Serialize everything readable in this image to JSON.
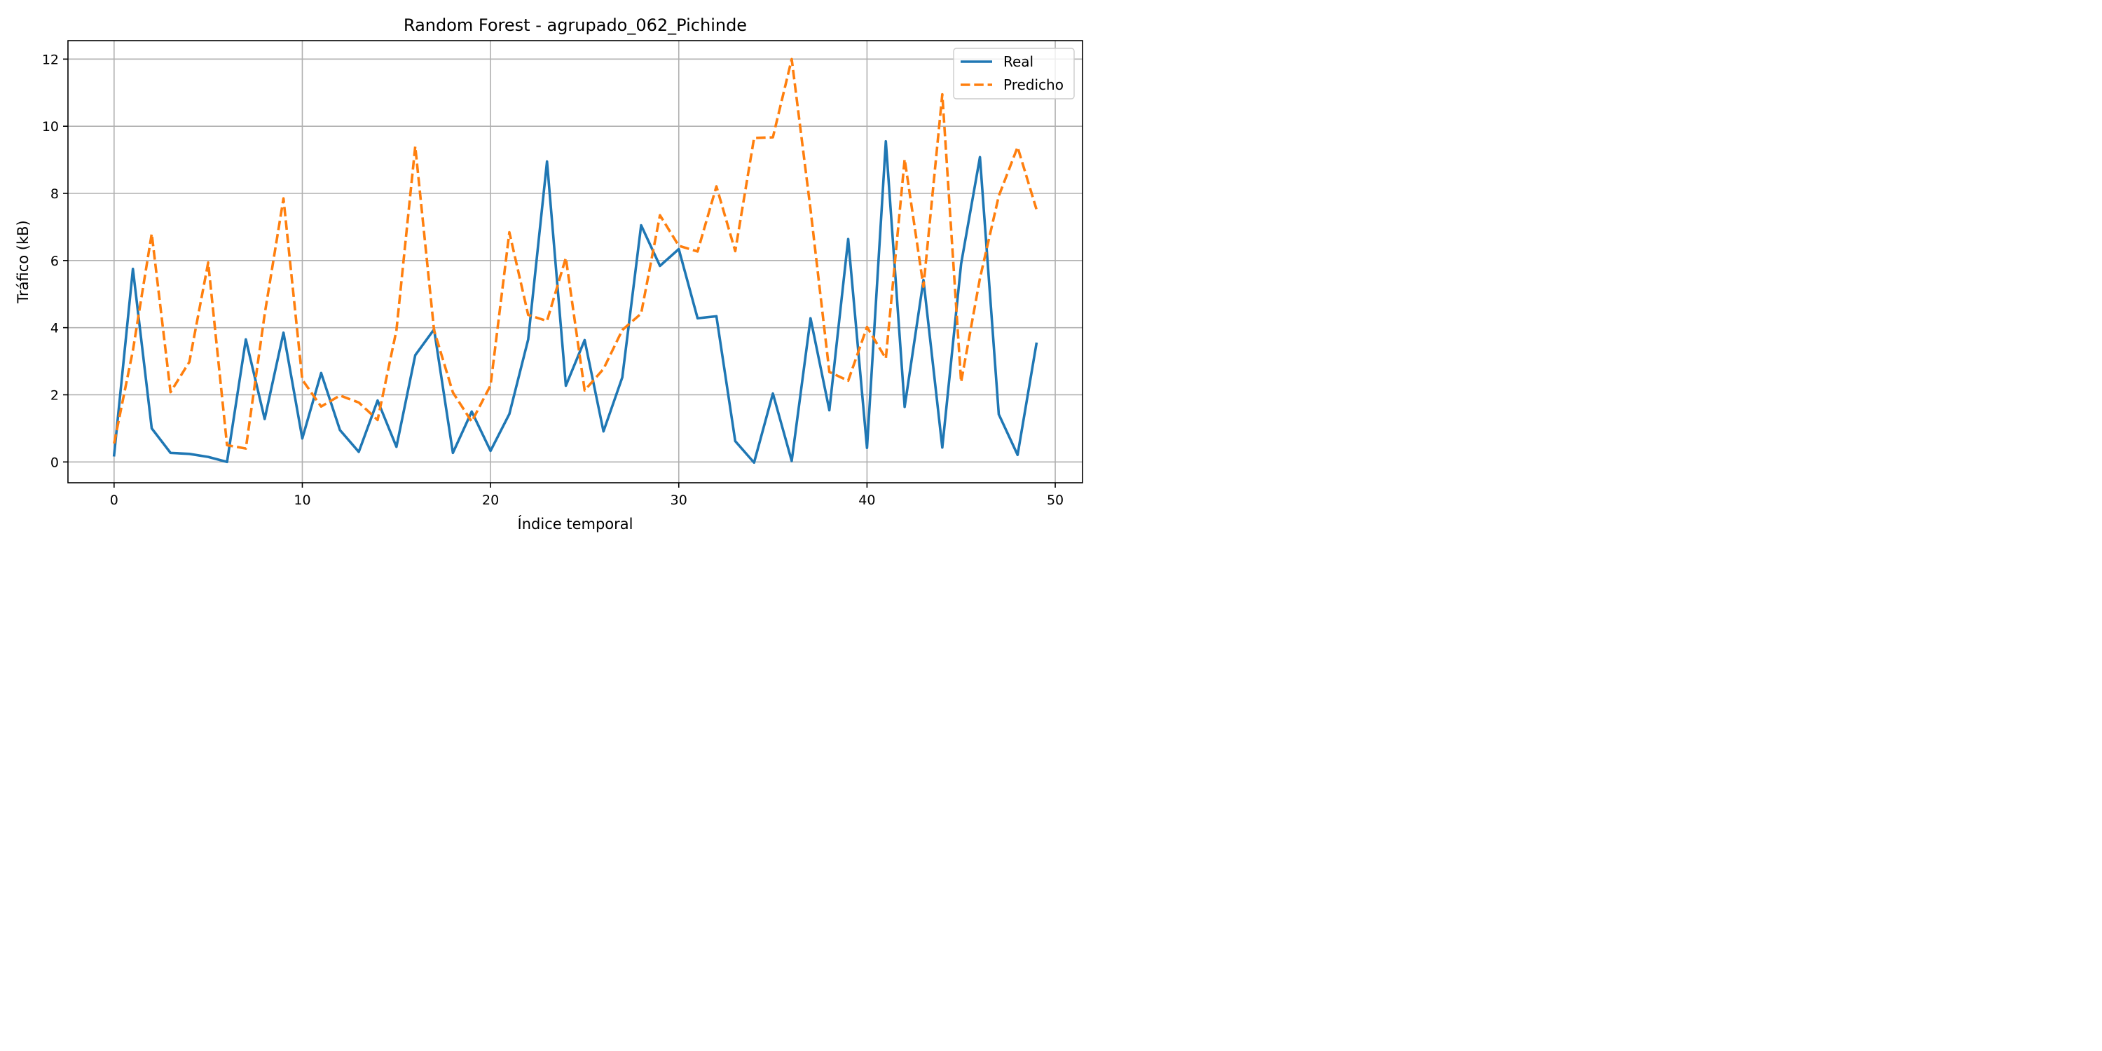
{
  "chart_data": {
    "type": "line",
    "title": "Random Forest - agrupado_062_Pichinde",
    "xlabel": "Índice temporal",
    "ylabel": "Tráfico (kB)",
    "xlim": [
      -2.45,
      51.45
    ],
    "ylim": [
      -0.62,
      12.55
    ],
    "xticks": [
      0,
      10,
      20,
      30,
      40,
      50
    ],
    "yticks": [
      0,
      2,
      4,
      6,
      8,
      10,
      12
    ],
    "grid": true,
    "legend_position": "top-right",
    "x": [
      0,
      1,
      2,
      3,
      4,
      5,
      6,
      7,
      8,
      9,
      10,
      11,
      12,
      13,
      14,
      15,
      16,
      17,
      18,
      19,
      20,
      21,
      22,
      23,
      24,
      25,
      26,
      27,
      28,
      29,
      30,
      31,
      32,
      33,
      34,
      35,
      36,
      37,
      38,
      39,
      40,
      41,
      42,
      43,
      44,
      45,
      46,
      47,
      48,
      49
    ],
    "series": [
      {
        "name": "Real",
        "color": "#1f77b4",
        "style": "solid",
        "values": [
          0.2,
          5.75,
          1.0,
          0.27,
          0.24,
          0.15,
          0.0,
          3.65,
          1.28,
          3.85,
          0.7,
          2.65,
          0.95,
          0.3,
          1.83,
          0.45,
          3.18,
          3.95,
          0.27,
          1.5,
          0.33,
          1.43,
          3.65,
          8.95,
          2.27,
          3.63,
          0.91,
          2.52,
          7.05,
          5.84,
          6.34,
          4.28,
          4.34,
          0.62,
          -0.02,
          2.04,
          0.03,
          4.28,
          1.54,
          6.64,
          0.42,
          9.55,
          1.64,
          5.42,
          0.43,
          5.9,
          9.08,
          1.42,
          0.21,
          3.52
        ]
      },
      {
        "name": "Predicho",
        "color": "#ff7f0e",
        "style": "dashed",
        "values": [
          0.55,
          3.32,
          6.8,
          2.08,
          2.98,
          5.94,
          0.5,
          0.4,
          4.4,
          7.85,
          2.45,
          1.65,
          1.98,
          1.77,
          1.25,
          3.92,
          9.4,
          3.92,
          2.07,
          1.2,
          2.28,
          6.84,
          4.38,
          4.2,
          6.08,
          2.13,
          2.77,
          3.93,
          4.42,
          7.35,
          6.44,
          6.27,
          8.21,
          6.28,
          9.65,
          9.67,
          12.0,
          7.52,
          2.68,
          2.42,
          4.02,
          3.08,
          9.02,
          5.22,
          10.95,
          2.38,
          5.47,
          7.92,
          9.38,
          7.53
        ]
      }
    ]
  }
}
